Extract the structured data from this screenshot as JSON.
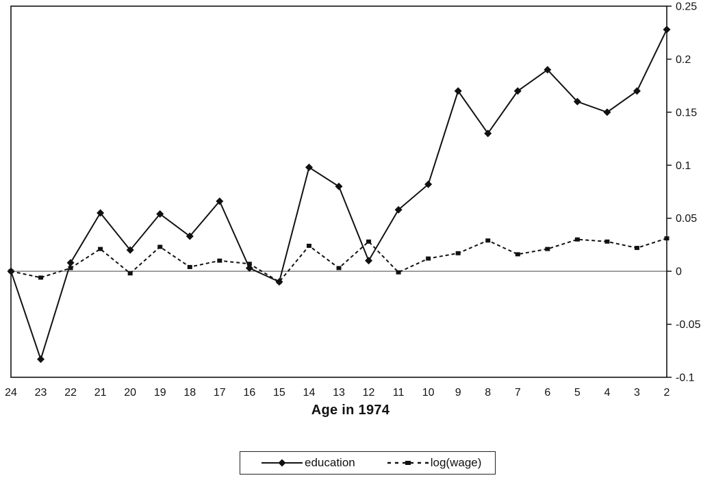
{
  "figure": {
    "background": "#ffffff",
    "ink_color": "#111111"
  },
  "legend": {
    "items": [
      {
        "label": "education",
        "line": "solid",
        "marker": "diamond"
      },
      {
        "label": "log(wage)",
        "line": "dashed",
        "marker": "square"
      }
    ]
  },
  "chart_data": {
    "type": "line",
    "title": "",
    "xlabel": "Age in 1974",
    "ylabel": "",
    "categories": [
      "24",
      "23",
      "22",
      "21",
      "20",
      "19",
      "18",
      "17",
      "16",
      "15",
      "14",
      "13",
      "12",
      "11",
      "10",
      "9",
      "8",
      "7",
      "6",
      "5",
      "4",
      "3",
      "2"
    ],
    "series": [
      {
        "name": "education",
        "line": "solid",
        "marker": "diamond",
        "values": [
          0.0,
          -0.083,
          0.008,
          0.055,
          0.02,
          0.054,
          0.033,
          0.066,
          0.003,
          -0.01,
          0.098,
          0.08,
          0.01,
          0.058,
          0.082,
          0.17,
          0.13,
          0.17,
          0.19,
          0.16,
          0.15,
          0.17,
          0.228
        ]
      },
      {
        "name": "log(wage)",
        "line": "dashed",
        "marker": "square",
        "values": [
          0.0,
          -0.006,
          0.003,
          0.021,
          -0.002,
          0.023,
          0.004,
          0.01,
          0.007,
          -0.01,
          0.024,
          0.003,
          0.028,
          -0.001,
          0.012,
          0.017,
          0.029,
          0.016,
          0.021,
          0.03,
          0.028,
          0.022,
          0.031
        ]
      }
    ],
    "ylim": [
      -0.1,
      0.25
    ],
    "yticks": [
      0.25,
      0.2,
      0.15,
      0.1,
      0.05,
      0,
      -0.05,
      -0.1
    ],
    "ytick_labels": [
      "0.25",
      "0.2",
      "0.15",
      "0.1",
      "0.05",
      "0",
      "-0.05",
      "-0.1"
    ],
    "y_axis_side": "right",
    "legend_position": "bottom",
    "grid": false,
    "zero_line": true
  }
}
